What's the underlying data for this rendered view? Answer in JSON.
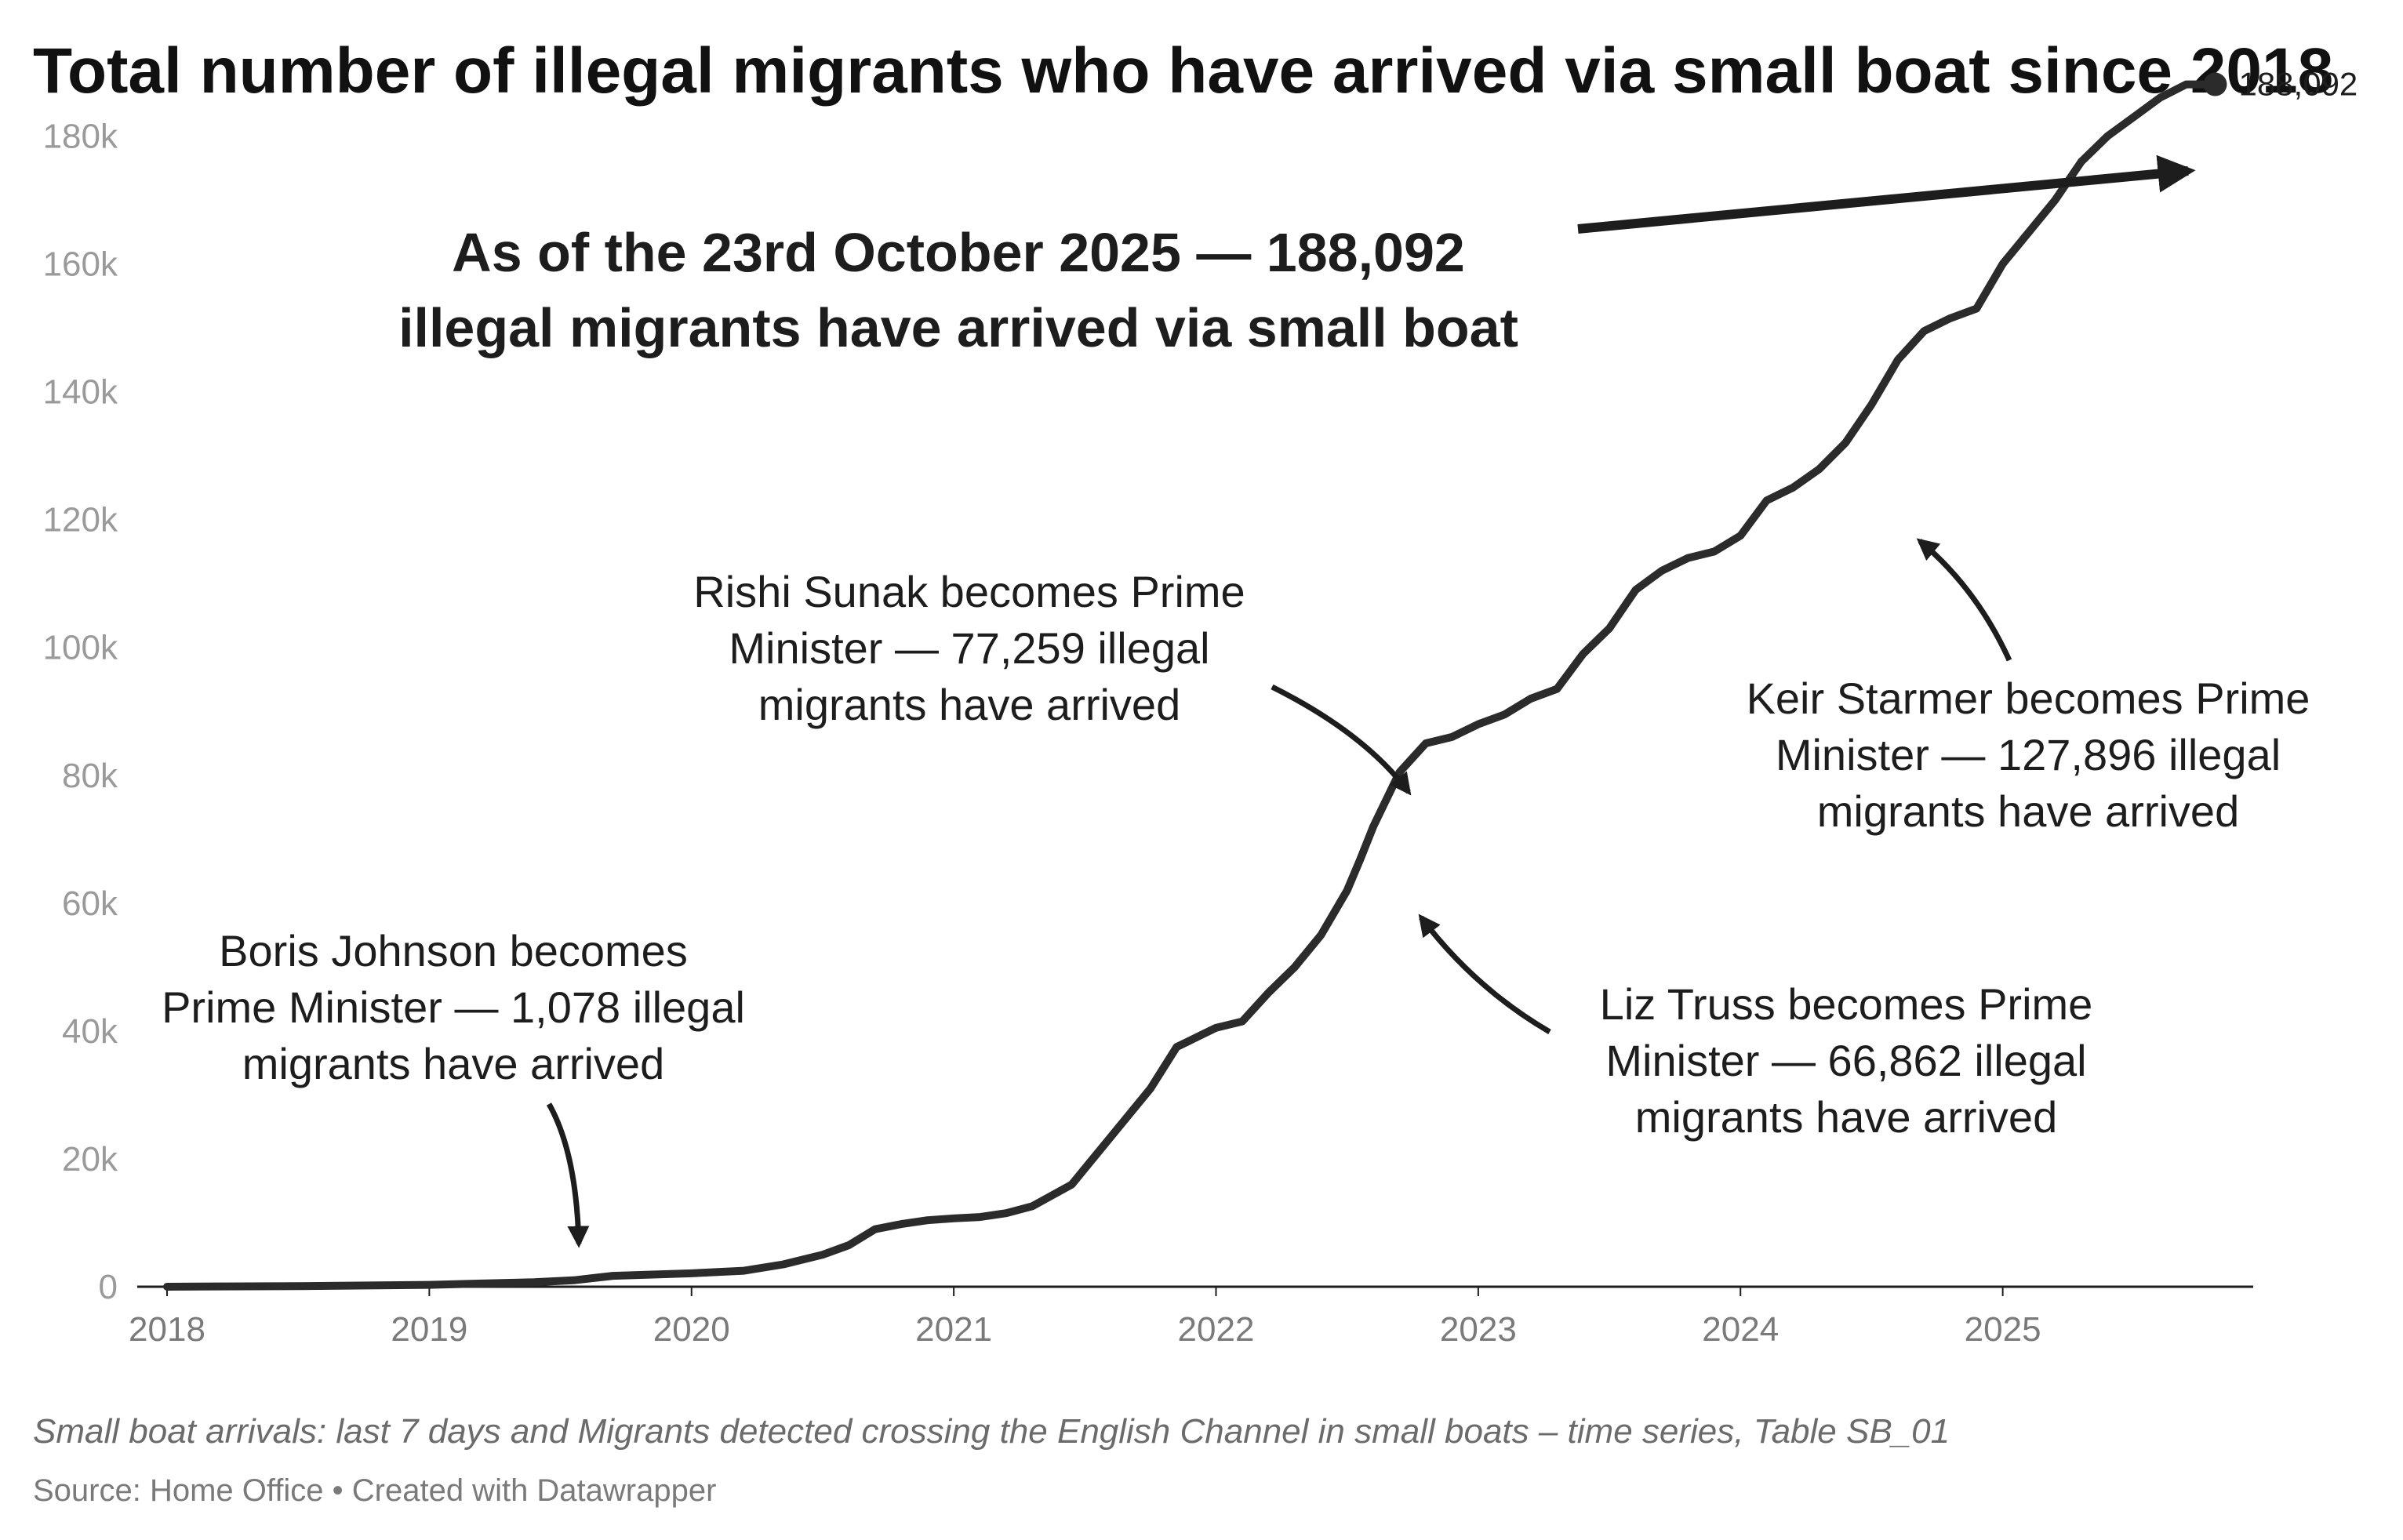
{
  "chart_data": {
    "type": "line",
    "title": "Total number of illegal migrants who have arrived via small boat since 2018",
    "xlabel": "",
    "ylabel": "",
    "xlim": [
      2018.0,
      2026.0
    ],
    "ylim": [
      0,
      190000
    ],
    "x_ticks": [
      "2018",
      "2019",
      "2020",
      "2021",
      "2022",
      "2023",
      "2024",
      "2025"
    ],
    "y_ticks": [
      {
        "value": 0,
        "label": "0"
      },
      {
        "value": 20000,
        "label": "20k"
      },
      {
        "value": 40000,
        "label": "40k"
      },
      {
        "value": 60000,
        "label": "60k"
      },
      {
        "value": 80000,
        "label": "80k"
      },
      {
        "value": 100000,
        "label": "100k"
      },
      {
        "value": 120000,
        "label": "120k"
      },
      {
        "value": 140000,
        "label": "140k"
      },
      {
        "value": 160000,
        "label": "160k"
      },
      {
        "value": 180000,
        "label": "180k"
      }
    ],
    "grid": false,
    "series": [
      {
        "x": [
          2018.0,
          2018.5,
          2019.0,
          2019.2,
          2019.4,
          2019.55,
          2019.7,
          2020.0,
          2020.2,
          2020.35,
          2020.5,
          2020.6,
          2020.7,
          2020.8,
          2020.9,
          2021.0,
          2021.1,
          2021.2,
          2021.3,
          2021.45,
          2021.55,
          2021.65,
          2021.75,
          2021.85,
          2021.9,
          2022.0,
          2022.1,
          2022.2,
          2022.3,
          2022.4,
          2022.5,
          2022.55,
          2022.6,
          2022.7,
          2022.8,
          2022.9,
          2023.0,
          2023.1,
          2023.2,
          2023.3,
          2023.4,
          2023.5,
          2023.6,
          2023.7,
          2023.8,
          2023.9,
          2024.0,
          2024.1,
          2024.2,
          2024.3,
          2024.4,
          2024.5,
          2024.6,
          2024.7,
          2024.8,
          2024.9,
          2025.0,
          2025.1,
          2025.2,
          2025.3,
          2025.4,
          2025.5,
          2025.6,
          2025.7,
          2025.81
        ],
        "values": [
          0,
          100,
          300,
          500,
          700,
          1000,
          1700,
          2100,
          2500,
          3500,
          5000,
          6500,
          9000,
          9800,
          10400,
          10700,
          10900,
          11500,
          12600,
          16000,
          21000,
          26000,
          31000,
          37500,
          38500,
          40500,
          41500,
          46000,
          50000,
          55000,
          62000,
          66862,
          72000,
          80500,
          85000,
          86000,
          88000,
          89500,
          92000,
          93500,
          99000,
          103000,
          109000,
          112000,
          114000,
          115000,
          117500,
          123000,
          125000,
          127896,
          132000,
          138000,
          145000,
          149500,
          151500,
          153000,
          160000,
          165000,
          170000,
          176000,
          180000,
          183000,
          186000,
          188092,
          188092
        ]
      }
    ],
    "end_point": {
      "value": 188092,
      "label": "188,092"
    },
    "annotations": [
      {
        "id": "johnson",
        "x": 2019.55,
        "lines": [
          "Boris Johnson becomes",
          "Prime Minister — 1,078 illegal",
          "migrants have arrived"
        ]
      },
      {
        "id": "sunak",
        "x": 2022.82,
        "lines": [
          "Rishi Sunak becomes Prime",
          "Minister — 77,259 illegal",
          "migrants have arrived"
        ]
      },
      {
        "id": "truss",
        "x": 2022.68,
        "lines": [
          "Liz Truss becomes Prime",
          "Minister — 66,862 illegal",
          "migrants have arrived"
        ]
      },
      {
        "id": "starmer",
        "x": 2024.55,
        "lines": [
          "Keir Starmer becomes Prime",
          "Minister — 127,896 illegal",
          "migrants have arrived"
        ]
      }
    ],
    "headline": [
      "As of the 23rd October 2025 — 188,092",
      "illegal migrants have arrived via small boat"
    ],
    "line_color": "#2b2b2b"
  },
  "footer": {
    "note": "Small boat arrivals: last 7 days and Migrants detected crossing the English Channel in small boats – time series, Table SB_01",
    "source": "Source: Home Office • Created with Datawrapper"
  }
}
